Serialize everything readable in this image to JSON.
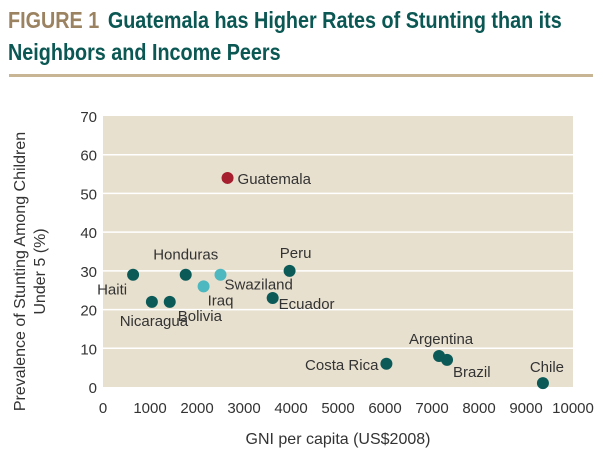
{
  "figure_label": "FIGURE 1",
  "title": "Guatemala has Higher Rates of Stunting than its Neighbors and Income Peers",
  "colors": {
    "background": "#e8e0cf",
    "neighbor": "#0b5a58",
    "peer": "#4db8bf",
    "highlight": "#a51f2e",
    "title_label": "#9b8260",
    "title": "#0b5753"
  },
  "chart_data": {
    "type": "scatter",
    "xlabel": "GNI per capita (US$2008)",
    "ylabel": "Prevalence of Stunting Among Children Under 5 (%)",
    "xlim": [
      0,
      10000
    ],
    "ylim": [
      0,
      70
    ],
    "xticks": [
      0,
      1000,
      2000,
      3000,
      4000,
      5000,
      6000,
      7000,
      8000,
      9000,
      10000
    ],
    "yticks": [
      0,
      10,
      20,
      30,
      40,
      50,
      60,
      70
    ],
    "grid": "horizontal",
    "points": [
      {
        "label": "Haiti",
        "x": 640,
        "y": 29,
        "group": "neighbor"
      },
      {
        "label": "Nicaragua",
        "x": 1040,
        "y": 22,
        "group": "neighbor"
      },
      {
        "label": "Bolivia",
        "x": 1420,
        "y": 22,
        "group": "neighbor"
      },
      {
        "label": "Honduras",
        "x": 1760,
        "y": 29,
        "group": "neighbor"
      },
      {
        "label": "Iraq",
        "x": 2140,
        "y": 26,
        "group": "peer"
      },
      {
        "label": "Swaziland",
        "x": 2500,
        "y": 29,
        "group": "peer"
      },
      {
        "label": "Guatemala",
        "x": 2650,
        "y": 54,
        "group": "highlight"
      },
      {
        "label": "Ecuador",
        "x": 3610,
        "y": 23,
        "group": "neighbor"
      },
      {
        "label": "Peru",
        "x": 3970,
        "y": 30,
        "group": "neighbor"
      },
      {
        "label": "Costa Rica",
        "x": 6030,
        "y": 6,
        "group": "neighbor"
      },
      {
        "label": "Argentina",
        "x": 7150,
        "y": 8,
        "group": "neighbor"
      },
      {
        "label": "Brazil",
        "x": 7320,
        "y": 7,
        "group": "neighbor"
      },
      {
        "label": "Chile",
        "x": 9360,
        "y": 1,
        "group": "neighbor"
      }
    ]
  }
}
